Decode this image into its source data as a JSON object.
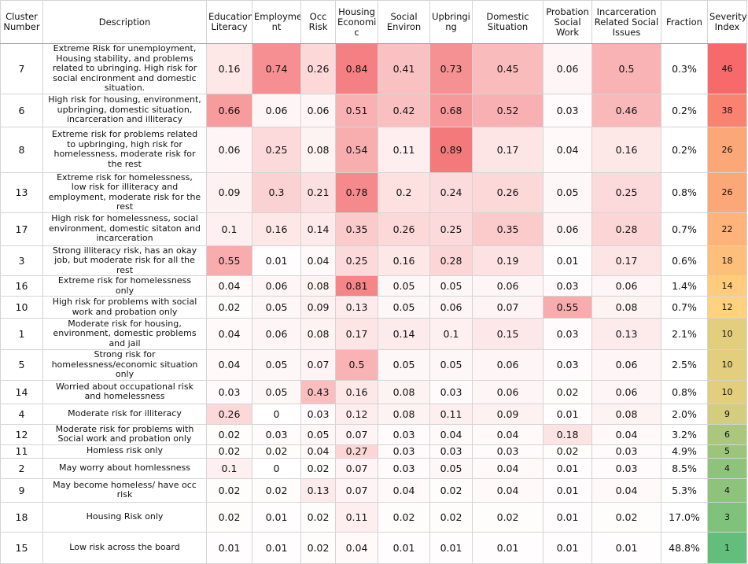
{
  "chart_data": {
    "type": "table",
    "columns": [
      "Cluster Number",
      "Description",
      "Education Literacy",
      "Employme nt",
      "Occ Risk",
      "Housing Economi c",
      "Social Environ",
      "Upbringi ng",
      "Domestic Situation",
      "Probation Social Work",
      "Incarceration Related Social Issues",
      "Fraction",
      "Severity Index"
    ],
    "rows": [
      {
        "cluster": "7",
        "description": "Extreme Risk for unemployment, Housing stability, and problems related to ubringing.  High risk for social encironment and domestic situation.",
        "values": [
          0.16,
          0.74,
          0.26,
          0.84,
          0.41,
          0.73,
          0.45,
          0.06,
          0.5
        ],
        "fraction": "0.3%",
        "severity": 46
      },
      {
        "cluster": "6",
        "description": "High risk for housing, environment, upbringing, domestic situation, incarceration and illiteracy",
        "values": [
          0.66,
          0.06,
          0.06,
          0.51,
          0.42,
          0.68,
          0.52,
          0.03,
          0.46
        ],
        "fraction": "0.2%",
        "severity": 38
      },
      {
        "cluster": "8",
        "description": "Extreme risk for problems related to upbringing, high risk for homelessness, moderate risk for the rest",
        "values": [
          0.06,
          0.25,
          0.08,
          0.54,
          0.11,
          0.89,
          0.17,
          0.04,
          0.16
        ],
        "fraction": "0.2%",
        "severity": 26
      },
      {
        "cluster": "13",
        "description": "Extreme risk for homelessness, low risk for illiteracy and employment, moderate risk for the rest",
        "values": [
          0.09,
          0.3,
          0.21,
          0.78,
          0.2,
          0.24,
          0.26,
          0.05,
          0.25
        ],
        "fraction": "0.8%",
        "severity": 26
      },
      {
        "cluster": "17",
        "description": "High risk for homelessness, social environment, domestic sitaton and incarceration",
        "values": [
          0.1,
          0.16,
          0.14,
          0.35,
          0.26,
          0.25,
          0.35,
          0.06,
          0.28
        ],
        "fraction": "0.7%",
        "severity": 22
      },
      {
        "cluster": "3",
        "description": "Strong illiteracy risk, has an okay job, but moderate risk for all the rest",
        "values": [
          0.55,
          0.01,
          0.04,
          0.25,
          0.16,
          0.28,
          0.19,
          0.01,
          0.17
        ],
        "fraction": "0.6%",
        "severity": 18
      },
      {
        "cluster": "16",
        "description": "Extreme risk for homelessness only",
        "values": [
          0.04,
          0.06,
          0.08,
          0.81,
          0.05,
          0.05,
          0.06,
          0.03,
          0.06
        ],
        "fraction": "1.4%",
        "severity": 14
      },
      {
        "cluster": "10",
        "description": "High risk for problems with social work and probation only",
        "values": [
          0.02,
          0.05,
          0.09,
          0.13,
          0.05,
          0.06,
          0.07,
          0.55,
          0.08
        ],
        "fraction": "0.7%",
        "severity": 12
      },
      {
        "cluster": "1",
        "description": "Moderate risk for housing, environment, domestic problems and jail",
        "values": [
          0.04,
          0.06,
          0.08,
          0.17,
          0.14,
          0.1,
          0.15,
          0.03,
          0.13
        ],
        "fraction": "2.1%",
        "severity": 10
      },
      {
        "cluster": "5",
        "description": "Strong risk for homelessness/economic situation only",
        "values": [
          0.04,
          0.05,
          0.07,
          0.5,
          0.05,
          0.05,
          0.06,
          0.03,
          0.06
        ],
        "fraction": "2.5%",
        "severity": 10
      },
      {
        "cluster": "14",
        "description": "Worried about occupational risk and homelessness",
        "values": [
          0.03,
          0.05,
          0.43,
          0.16,
          0.08,
          0.03,
          0.06,
          0.02,
          0.06
        ],
        "fraction": "0.8%",
        "severity": 10
      },
      {
        "cluster": "4",
        "description": "Moderate risk for illiteracy",
        "values": [
          0.26,
          0,
          0.03,
          0.12,
          0.08,
          0.11,
          0.09,
          0.01,
          0.08
        ],
        "fraction": "2.0%",
        "severity": 9
      },
      {
        "cluster": "12",
        "description": "Moderate risk for problems with Social work and probation only",
        "values": [
          0.02,
          0.03,
          0.05,
          0.07,
          0.03,
          0.04,
          0.04,
          0.18,
          0.04
        ],
        "fraction": "3.2%",
        "severity": 6
      },
      {
        "cluster": "11",
        "description": "Homless risk only",
        "values": [
          0.02,
          0.02,
          0.04,
          0.27,
          0.03,
          0.03,
          0.03,
          0.02,
          0.03
        ],
        "fraction": "4.9%",
        "severity": 5
      },
      {
        "cluster": "2",
        "description": "May worry about homlessness",
        "values": [
          0.1,
          0,
          0.02,
          0.07,
          0.03,
          0.05,
          0.04,
          0.01,
          0.03
        ],
        "fraction": "8.5%",
        "severity": 4
      },
      {
        "cluster": "9",
        "description": "May become homeless/ have occ risk",
        "values": [
          0.02,
          0.02,
          0.13,
          0.07,
          0.04,
          0.02,
          0.04,
          0.01,
          0.04
        ],
        "fraction": "5.3%",
        "severity": 4
      },
      {
        "cluster": "18",
        "description": "Housing Risk only",
        "values": [
          0.02,
          0.01,
          0.02,
          0.11,
          0.02,
          0.02,
          0.02,
          0.01,
          0.02
        ],
        "fraction": "17.0%",
        "severity": 3
      },
      {
        "cluster": "15",
        "description": "Low risk across the board",
        "values": [
          0.01,
          0.01,
          0.02,
          0.04,
          0.01,
          0.01,
          0.01,
          0.01,
          0.01
        ],
        "fraction": "48.8%",
        "severity": 1
      }
    ],
    "colors": {
      "heat_low": "#ffffff",
      "heat_high": "#f4777a",
      "severity_high": "#f8696b",
      "severity_mid": "#ffd27f",
      "severity_low": "#63be7b"
    }
  }
}
